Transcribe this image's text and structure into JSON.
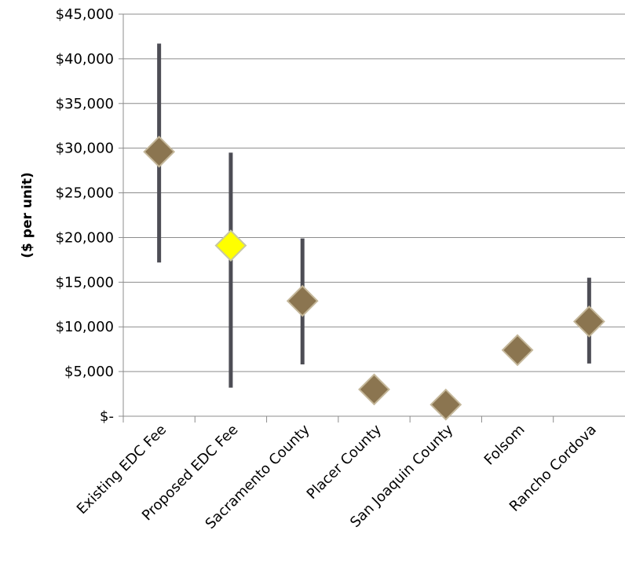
{
  "chart_data": {
    "type": "scatter",
    "title": "",
    "xlabel": "",
    "ylabel": "($ per unit)",
    "ylim": [
      0,
      45000
    ],
    "y_tick_values": [
      0,
      5000,
      10000,
      15000,
      20000,
      25000,
      30000,
      35000,
      40000,
      45000
    ],
    "y_tick_labels": [
      "$-",
      "$5,000",
      "$10,000",
      "$15,000",
      "$20,000",
      "$25,000",
      "$30,000",
      "$35,000",
      "$40,000",
      "$45,000"
    ],
    "grid": "horizontal",
    "legend": "none",
    "categories": [
      "Existing EDC Fee",
      "Proposed EDC Fee",
      "Sacramento County",
      "Placer County",
      "San Joaquin County",
      "Folsom",
      "Rancho Cordova"
    ],
    "values": [
      29600,
      19100,
      12900,
      3000,
      1300,
      7400,
      10600
    ],
    "range_low": [
      17200,
      3200,
      5800,
      null,
      null,
      null,
      5900
    ],
    "range_high": [
      41700,
      29500,
      19900,
      null,
      null,
      null,
      15500
    ],
    "colors": {
      "marker": "#8B7550",
      "marker_edge": "#C4B79A",
      "highlight_marker": "#FFFF00",
      "highlight_edge": "#C8C8A0",
      "range_bar": "#4D4D55",
      "grid": "#8C8C8C"
    },
    "highlight_index": 1
  }
}
